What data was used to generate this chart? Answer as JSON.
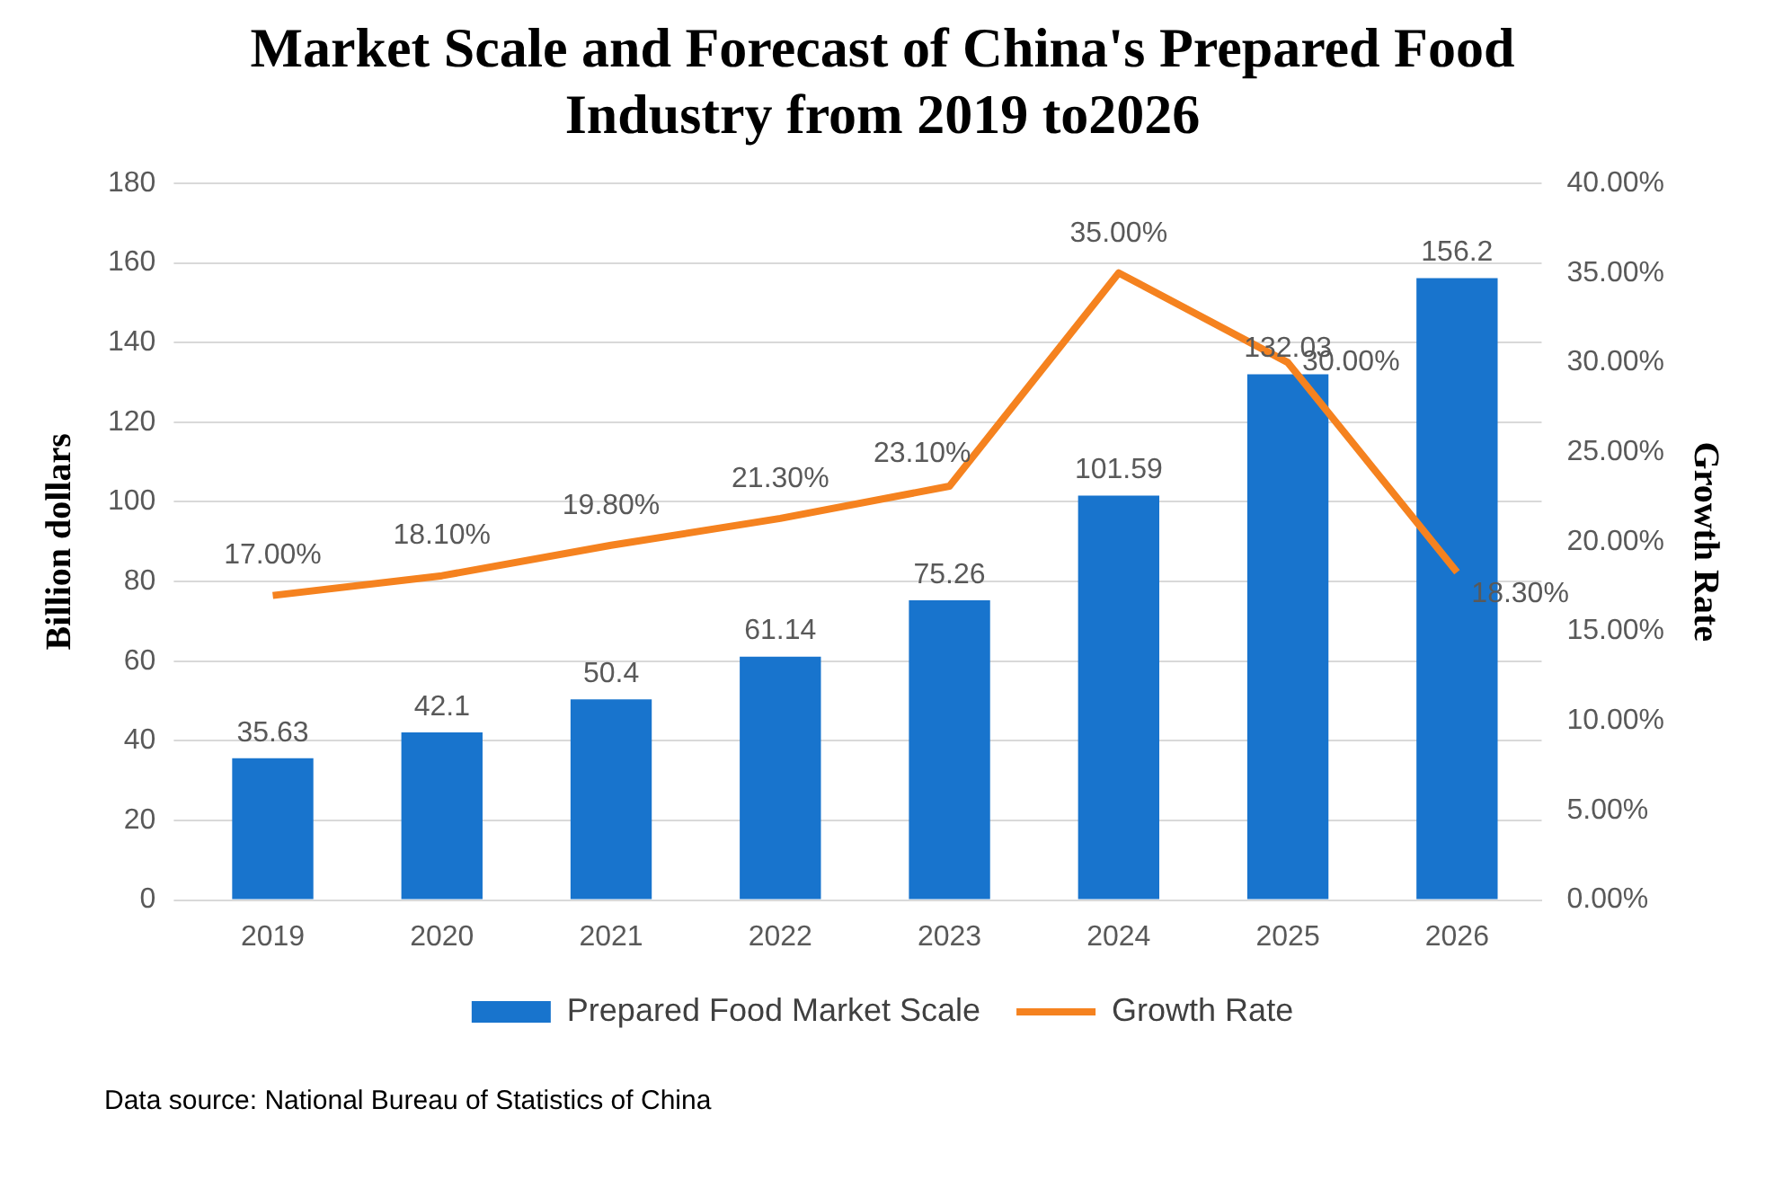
{
  "chart_data": {
    "type": "bar",
    "title": "Market Scale and Forecast of China's Prepared Food Industry from 2019 to2026",
    "ylabel": "Billion dollars",
    "y2label": "Growth Rate",
    "categories": [
      "2019",
      "2020",
      "2021",
      "2022",
      "2023",
      "2024",
      "2025",
      "2026"
    ],
    "series": [
      {
        "name": "Prepared Food Market Scale",
        "color": "#1874cd",
        "values": [
          35.63,
          42.1,
          50.4,
          61.14,
          75.26,
          101.59,
          132.03,
          156.2
        ],
        "value_labels": [
          "35.63",
          "42.1",
          "50.4",
          "61.14",
          "75.26",
          "101.59",
          "132.03",
          "156.2"
        ]
      },
      {
        "name": "Growth Rate",
        "type": "line",
        "axis": "y2",
        "color": "#f5821f",
        "values": [
          17,
          18.1,
          19.8,
          21.3,
          23.1,
          35,
          30,
          18.3
        ],
        "value_labels": [
          "17.00%",
          "18.10%",
          "19.80%",
          "21.30%",
          "23.10%",
          "35.00%",
          "30.00%",
          "18.30%"
        ]
      }
    ],
    "ylim": [
      0,
      180
    ],
    "yticks": [
      0,
      20,
      40,
      60,
      80,
      100,
      120,
      140,
      160,
      180
    ],
    "y2lim": [
      0,
      40
    ],
    "y2ticks": [
      {
        "value": 0,
        "label": "0.00%"
      },
      {
        "value": 5,
        "label": "5.00%"
      },
      {
        "value": 10,
        "label": "10.00%"
      },
      {
        "value": 15,
        "label": "15.00%"
      },
      {
        "value": 20,
        "label": "20.00%"
      },
      {
        "value": 25,
        "label": "25.00%"
      },
      {
        "value": 30,
        "label": "30.00%"
      },
      {
        "value": 35,
        "label": "35.00%"
      },
      {
        "value": 40,
        "label": "40.00%"
      }
    ],
    "grid": "y",
    "legend": "bottom",
    "marker": "none",
    "line_style": "solid",
    "annotations": [
      "Data source: National Bureau of Statistics of China"
    ]
  }
}
